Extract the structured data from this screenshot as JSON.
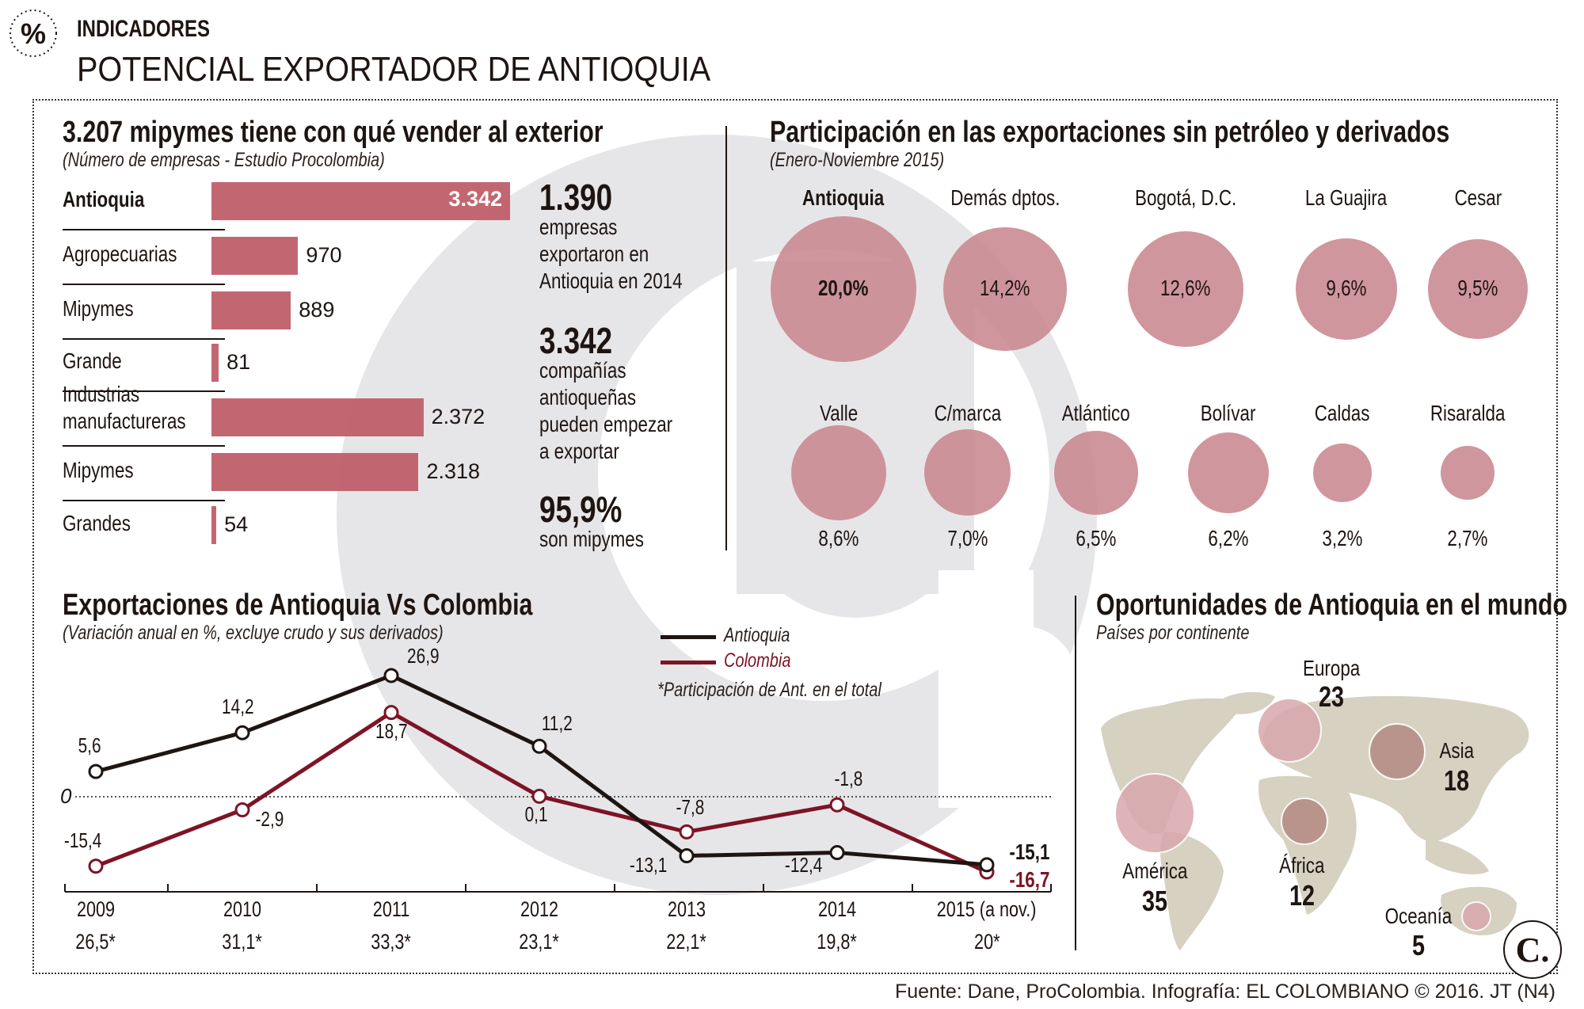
{
  "header": {
    "icon": "percent-icon",
    "section": "INDICADORES",
    "title": "POTENCIAL EXPORTADOR DE ANTIOQUIA"
  },
  "colors": {
    "bar": "#bf5f69",
    "bubble": "#c8848c",
    "antioquia": "#1e1512",
    "colombia": "#7d1426",
    "map_land": "#d6d1c1",
    "map_bubble": "#d9a7ad",
    "watermark": "#e6e6e8"
  },
  "chart_data": [
    {
      "type": "bar",
      "title": "3.207 mipymes tiene con qué vender al exterior",
      "subtitle": "(Número de empresas - Estudio Procolombia)",
      "categories": [
        "Antioquia",
        "Agropecuarias",
        "Mipymes",
        "Grande",
        "Industrias manufactureras",
        "Mipymes",
        "Grandes"
      ],
      "values": [
        3342,
        970,
        889,
        81,
        2372,
        2318,
        54
      ],
      "value_labels": [
        "3.342",
        "970",
        "889",
        "81",
        "2.372",
        "2.318",
        "54"
      ]
    },
    {
      "type": "bubble",
      "title": "Participación en las exportaciones sin petróleo y derivados",
      "subtitle": "(Enero-Noviembre 2015)",
      "categories": [
        "Antioquia",
        "Demás dptos.",
        "Bogotá, D.C.",
        "La Guajira",
        "Cesar",
        "Valle",
        "C/marca",
        "Atlántico",
        "Bolívar",
        "Caldas",
        "Risaralda"
      ],
      "values": [
        20.0,
        14.2,
        12.6,
        9.6,
        9.5,
        8.6,
        7.0,
        6.5,
        6.2,
        3.2,
        2.7
      ],
      "value_labels": [
        "20,0%",
        "14,2%",
        "12,6%",
        "9,6%",
        "9,5%",
        "8,6%",
        "7,0%",
        "6,5%",
        "6,2%",
        "3,2%",
        "2,7%"
      ],
      "unit": "%"
    },
    {
      "type": "line",
      "title": "Exportaciones de Antioquia Vs Colombia",
      "subtitle": "(Variación anual en %, excluye crudo y sus derivados)",
      "categories": [
        "2009",
        "2010",
        "2011",
        "2012",
        "2013",
        "2014",
        "2015 (a nov.)"
      ],
      "participation": [
        "26,5*",
        "31,1*",
        "33,3*",
        "23,1*",
        "22,1*",
        "19,8*",
        "20*"
      ],
      "footnote": "*Participación de Ant. en el total",
      "zero_label": "0",
      "series": [
        {
          "name": "Antioquia",
          "values": [
            5.6,
            14.2,
            26.9,
            11.2,
            -13.1,
            -12.4,
            -15.1
          ],
          "labels": [
            "5,6",
            "14,2",
            "26,9",
            "11,2",
            "-13,1",
            "-12,4",
            "-15,1"
          ]
        },
        {
          "name": "Colombia",
          "values": [
            -15.4,
            -2.9,
            18.7,
            0.1,
            -7.8,
            -1.8,
            -16.7
          ],
          "labels": [
            "-15,4",
            "-2,9",
            "18,7",
            "0,1",
            "-7,8",
            "-1,8",
            "-16,7"
          ]
        }
      ],
      "legend": "top-right",
      "grid": false
    },
    {
      "type": "map-bubble",
      "title": "Oportunidades de Antioquia en el mundo",
      "subtitle": "Países por continente",
      "categories": [
        "América",
        "Europa",
        "África",
        "Asia",
        "Oceanía"
      ],
      "values": [
        35,
        23,
        12,
        18,
        5
      ]
    }
  ],
  "stats": [
    {
      "value": "1.390",
      "lines": [
        "empresas",
        "exportaron en",
        "Antioquia en 2014"
      ]
    },
    {
      "value": "3.342",
      "lines": [
        "compañías",
        "antioqueñas",
        "pueden empezar",
        "a exportar"
      ]
    },
    {
      "value": "95,9%",
      "lines": [
        "son mipymes"
      ]
    }
  ],
  "footer": {
    "source": "Fuente: Dane, ProColombia. Infografía: EL COLOMBIANO © 2016. JT (N4)",
    "logo": "C."
  }
}
